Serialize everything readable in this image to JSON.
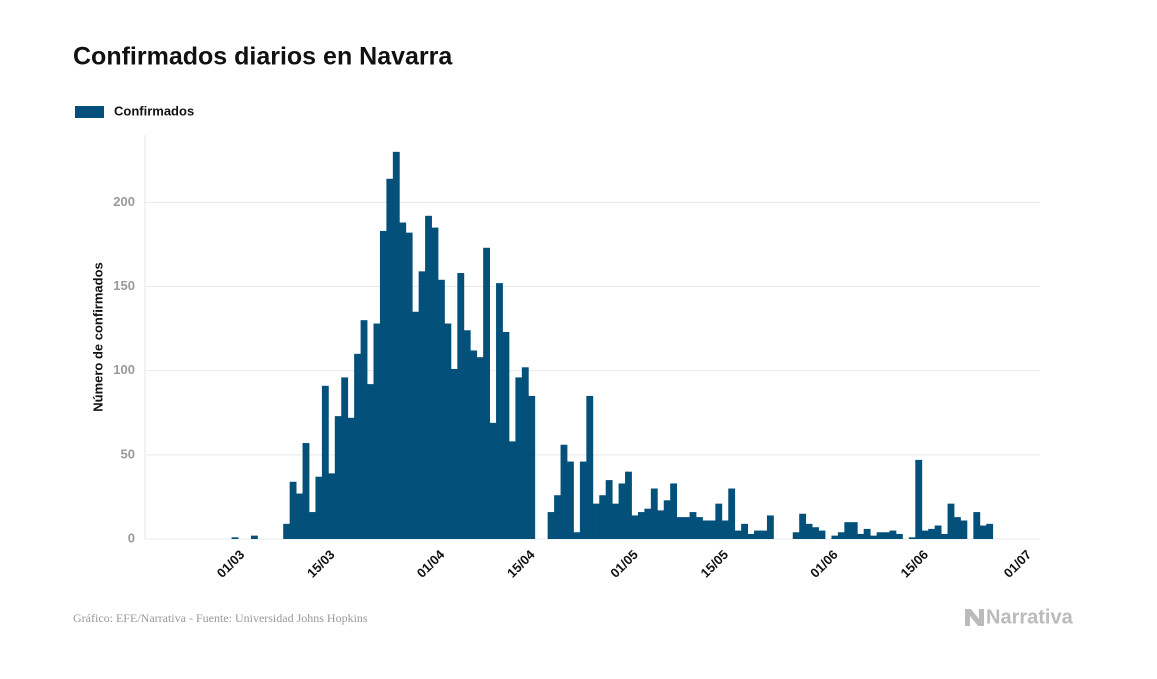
{
  "chart_data": {
    "type": "bar",
    "title": "Confirmados diarios en Navarra",
    "y_label": "Número de confirmados",
    "source": "Gráfico: EFE/Narrativa - Fuente: Universidad Johns Hopkins",
    "brand": "Narrativa",
    "legend": "top-left",
    "grid": true,
    "series": [
      {
        "name": "Confirmados",
        "color": "#03507b",
        "values": [
          0,
          0,
          0,
          0,
          0,
          0,
          0,
          0,
          1,
          0,
          0,
          2,
          0,
          0,
          0,
          0,
          9,
          34,
          27,
          57,
          16,
          37,
          91,
          39,
          73,
          96,
          72,
          110,
          130,
          92,
          128,
          183,
          214,
          230,
          188,
          182,
          135,
          159,
          192,
          185,
          154,
          128,
          101,
          158,
          124,
          112,
          108,
          173,
          69,
          152,
          123,
          58,
          96,
          102,
          85,
          0,
          0,
          16,
          26,
          56,
          46,
          4,
          46,
          85,
          21,
          26,
          35,
          21,
          33,
          40,
          14,
          16,
          18,
          30,
          17,
          23,
          33,
          13,
          13,
          16,
          13,
          11,
          11,
          21,
          11,
          30,
          5,
          9,
          3,
          5,
          5,
          14,
          0,
          0,
          0,
          4,
          15,
          9,
          7,
          5,
          0,
          2,
          4,
          10,
          10,
          3,
          6,
          2,
          4,
          4,
          5,
          3,
          0,
          1,
          47,
          5,
          6,
          8,
          3,
          21,
          13,
          11,
          0,
          16,
          8,
          9,
          null,
          null,
          null,
          null,
          null
        ]
      }
    ],
    "categories": [
      null,
      null,
      null,
      null,
      null,
      null,
      null,
      null,
      "01/03",
      null,
      null,
      null,
      null,
      null,
      null,
      null,
      null,
      null,
      null,
      null,
      null,
      null,
      "15/03",
      null,
      null,
      null,
      null,
      null,
      null,
      null,
      null,
      null,
      null,
      null,
      null,
      null,
      null,
      null,
      null,
      "01/04",
      null,
      null,
      null,
      null,
      null,
      null,
      null,
      null,
      null,
      null,
      null,
      null,
      null,
      "15/04",
      null,
      null,
      null,
      null,
      null,
      null,
      null,
      null,
      null,
      null,
      null,
      null,
      null,
      null,
      null,
      "01/05",
      null,
      null,
      null,
      null,
      null,
      null,
      null,
      null,
      null,
      null,
      null,
      null,
      null,
      "15/05",
      null,
      null,
      null,
      null,
      null,
      null,
      null,
      null,
      null,
      null,
      null,
      null,
      null,
      null,
      null,
      null,
      "01/06",
      null,
      null,
      null,
      null,
      null,
      null,
      null,
      null,
      null,
      null,
      null,
      null,
      null,
      "15/06",
      null,
      null,
      null,
      null,
      null,
      null,
      null,
      null,
      null,
      null,
      null,
      null,
      null,
      null,
      null,
      "01/07"
    ],
    "ylim": [
      0,
      240
    ],
    "yticks": [
      0,
      50,
      100,
      150,
      200
    ]
  }
}
